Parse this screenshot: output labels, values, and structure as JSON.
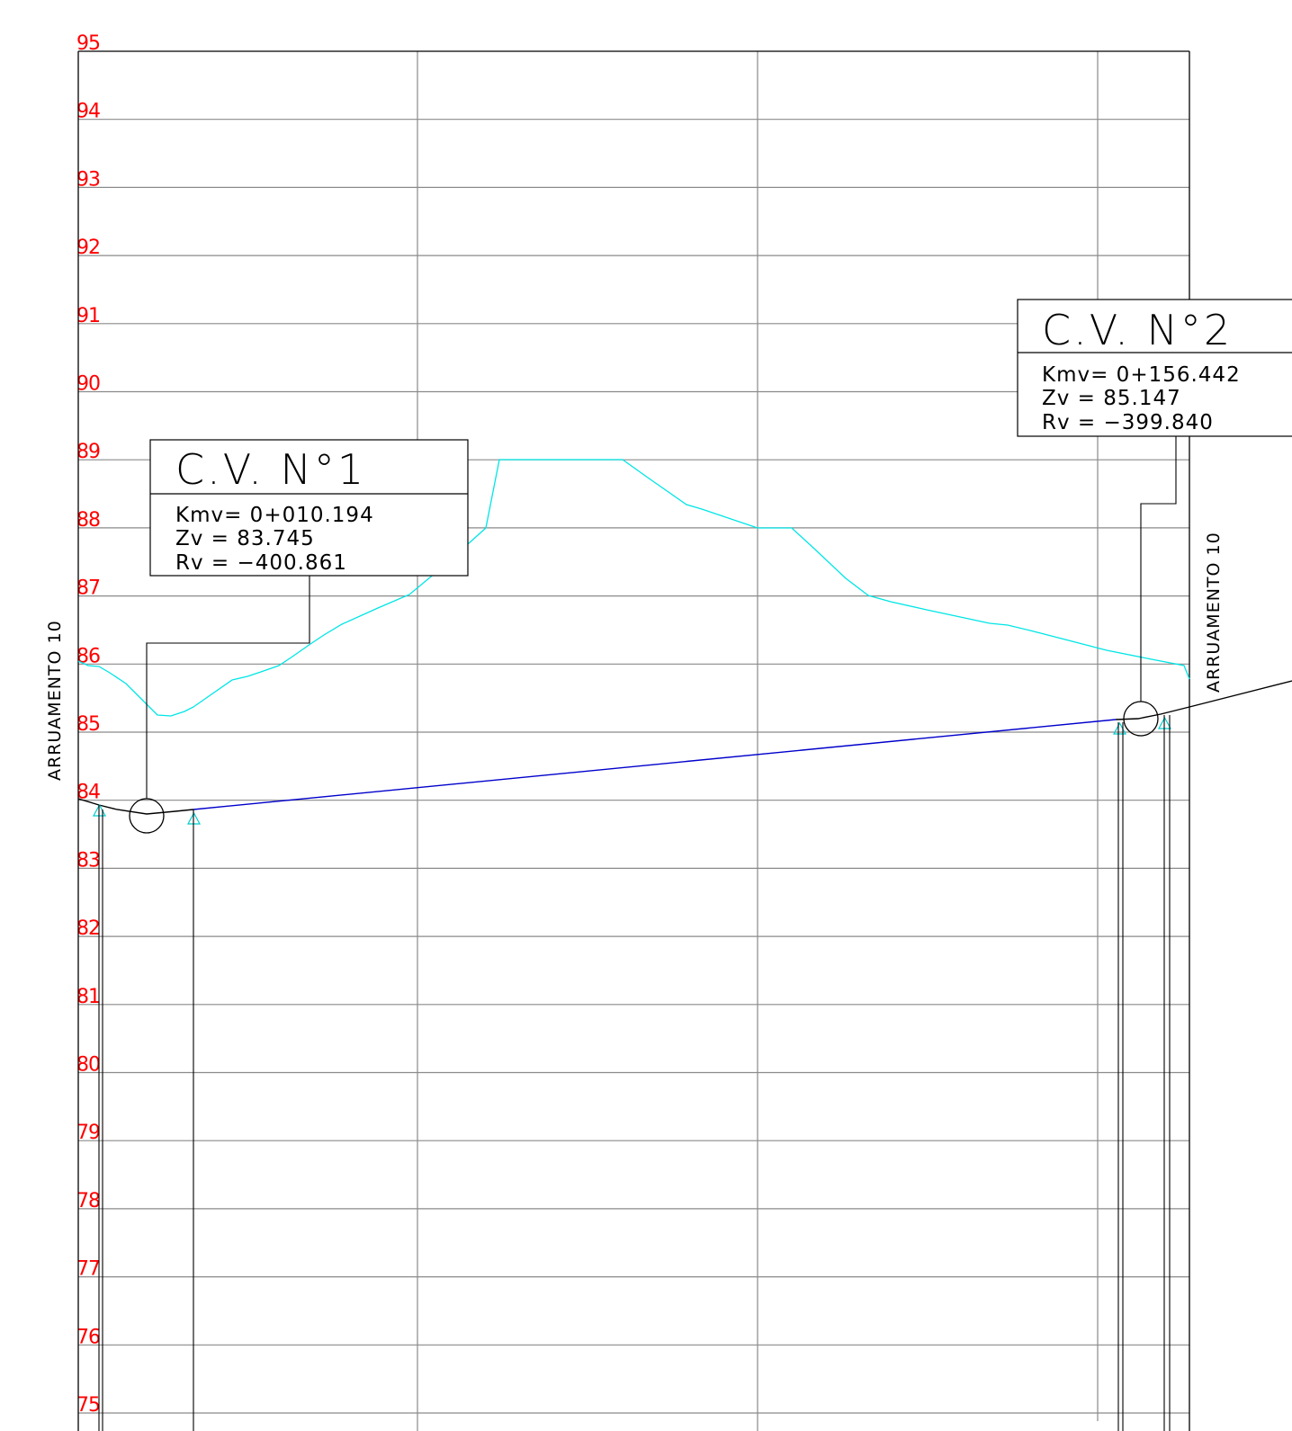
{
  "profile": {
    "colors": {
      "grid": "#8a8a8a",
      "frame": "#000000",
      "elevation_labels": "#ff0000",
      "terrain": "#00e5e5",
      "grade_line": "#0000cc",
      "curve": "#000000",
      "annotation": "#000000"
    },
    "elevations": [
      "95",
      "94",
      "93",
      "92",
      "91",
      "90",
      "89",
      "88",
      "87",
      "86",
      "85",
      "84",
      "83",
      "82",
      "81",
      "80",
      "79",
      "78",
      "77",
      "76",
      "75"
    ],
    "road_name_left": "ARRUAMENTO 10",
    "road_name_right": "ARRUAMENTO 10",
    "curves": [
      {
        "title": "C.V. N°1",
        "kmv_text": "Kmv= 0+010.194",
        "zv_text": "Zv = 83.745",
        "rv_text": "Rv = −400.861",
        "kmv": 10.194,
        "zv": 83.745,
        "rv": -400.861
      },
      {
        "title": "C.V. N°2",
        "kmv_text": "Kmv= 0+156.442",
        "zv_text": "Zv = 85.147",
        "rv_text": "Rv = −399.840",
        "kmv": 156.442,
        "zv": 85.147,
        "rv": -399.84
      }
    ]
  }
}
